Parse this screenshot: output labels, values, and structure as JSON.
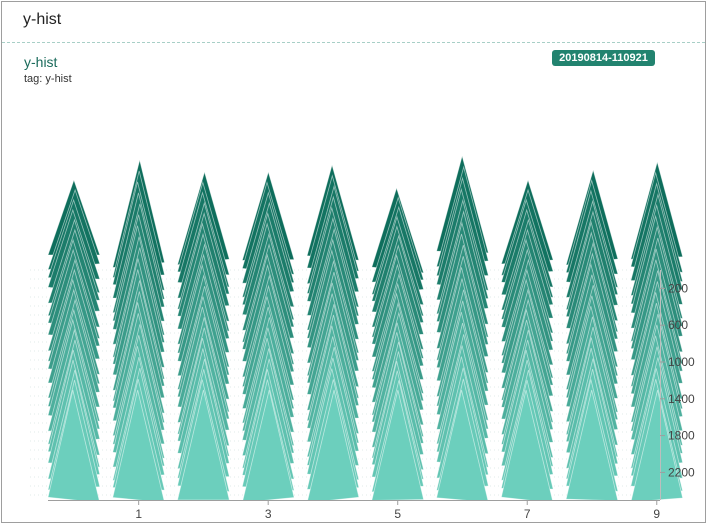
{
  "header": {
    "title": "y-hist"
  },
  "card": {
    "title": "y-hist",
    "tag": "tag: y-hist",
    "run": "20190814-110921"
  },
  "colors": {
    "accent": "#22836f",
    "early_step": "#0e6e5c",
    "late_step": "#6ccfbd"
  },
  "chart_data": {
    "type": "histogram",
    "mode": "offset",
    "title": "",
    "xlabel": "",
    "ylabel": "",
    "xlim": [
      -0.4,
      9.05
    ],
    "ylim": [
      2500,
      0
    ],
    "step_axis_side": "right",
    "x_ticks": [
      1,
      3,
      5,
      7,
      9
    ],
    "y_ticks": [
      200,
      600,
      1000,
      1400,
      1800,
      2200
    ],
    "grid": false,
    "series": [
      {
        "center": 0.0,
        "peak_top": 180,
        "peak_bottom": 255
      },
      {
        "center": 1.0,
        "peak_top": 160,
        "peak_bottom": 265
      },
      {
        "center": 2.0,
        "peak_top": 172,
        "peak_bottom": 262
      },
      {
        "center": 3.0,
        "peak_top": 172,
        "peak_bottom": 260
      },
      {
        "center": 4.0,
        "peak_top": 165,
        "peak_bottom": 258
      },
      {
        "center": 5.0,
        "peak_top": 188,
        "peak_bottom": 270
      },
      {
        "center": 6.0,
        "peak_top": 156,
        "peak_bottom": 252
      },
      {
        "center": 7.0,
        "peak_top": 180,
        "peak_bottom": 262
      },
      {
        "center": 8.0,
        "peak_top": 170,
        "peak_bottom": 262
      },
      {
        "center": 9.0,
        "peak_top": 162,
        "peak_bottom": 258
      }
    ]
  }
}
